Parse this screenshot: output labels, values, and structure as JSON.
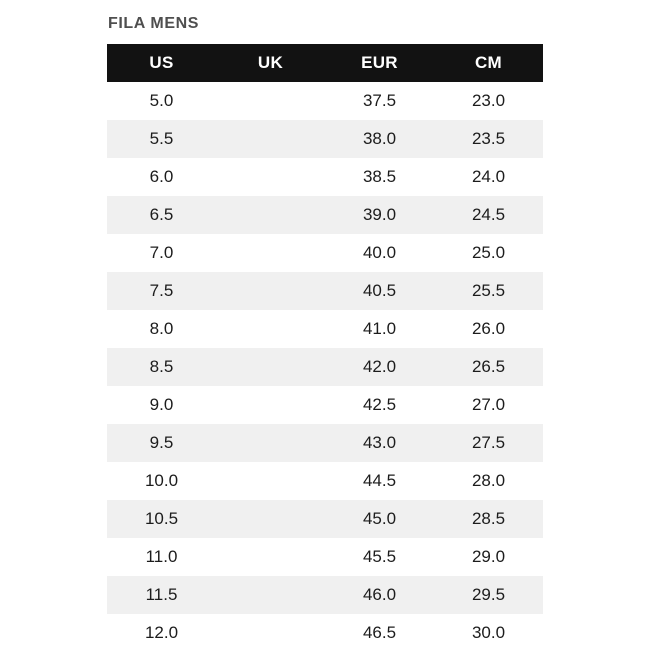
{
  "title": "FILA MENS",
  "chart_data": {
    "type": "table",
    "title": "FILA MENS",
    "columns": [
      "US",
      "UK",
      "EUR",
      "CM"
    ],
    "rows": [
      [
        "5.0",
        "",
        "37.5",
        "23.0"
      ],
      [
        "5.5",
        "",
        "38.0",
        "23.5"
      ],
      [
        "6.0",
        "",
        "38.5",
        "24.0"
      ],
      [
        "6.5",
        "",
        "39.0",
        "24.5"
      ],
      [
        "7.0",
        "",
        "40.0",
        "25.0"
      ],
      [
        "7.5",
        "",
        "40.5",
        "25.5"
      ],
      [
        "8.0",
        "",
        "41.0",
        "26.0"
      ],
      [
        "8.5",
        "",
        "42.0",
        "26.5"
      ],
      [
        "9.0",
        "",
        "42.5",
        "27.0"
      ],
      [
        "9.5",
        "",
        "43.0",
        "27.5"
      ],
      [
        "10.0",
        "",
        "44.5",
        "28.0"
      ],
      [
        "10.5",
        "",
        "45.0",
        "28.5"
      ],
      [
        "11.0",
        "",
        "45.5",
        "29.0"
      ],
      [
        "11.5",
        "",
        "46.0",
        "29.5"
      ],
      [
        "12.0",
        "",
        "46.5",
        "30.0"
      ]
    ],
    "layout": {
      "header_style": "solid black bar, white bold centered text",
      "row_striping": "alternating white and light gray starting with white",
      "grid": false,
      "uk_column_empty": true
    }
  },
  "colors": {
    "header_bg": "#121212",
    "header_text": "#ffffff",
    "row_bg": "#ffffff",
    "row_alt_bg": "#f0f0f0",
    "title_text": "#4f4f4f",
    "cell_text": "#1c1c1c"
  }
}
